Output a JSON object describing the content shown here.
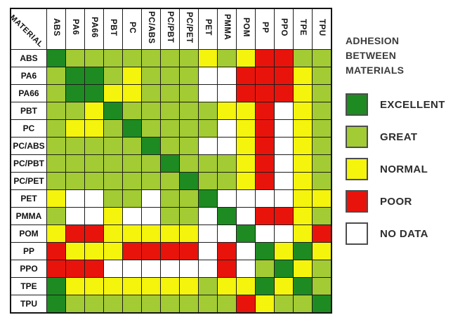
{
  "title": "ADHESION BETWEEN MATERIALS",
  "corner_label": "MATERIAL",
  "materials": [
    "ABS",
    "PA6",
    "PA66",
    "PBT",
    "PC",
    "PC/ABS",
    "PC/PBT",
    "PC/PET",
    "PET",
    "PMMA",
    "POM",
    "PP",
    "PPO",
    "TPE",
    "TPU"
  ],
  "legend": [
    {
      "code": "E",
      "label": "EXCELLENT",
      "color": "#1e8b22"
    },
    {
      "code": "G",
      "label": "GREAT",
      "color": "#a3cb33"
    },
    {
      "code": "N",
      "label": "NORMAL",
      "color": "#f4f40c"
    },
    {
      "code": "P",
      "label": "POOR",
      "color": "#e8140c"
    },
    {
      "code": "X",
      "label": "NO DATA",
      "color": "#ffffff"
    }
  ],
  "chart_data": {
    "type": "heatmap",
    "title": "ADHESION BETWEEN MATERIALS",
    "rows": [
      "ABS",
      "PA6",
      "PA66",
      "PBT",
      "PC",
      "PC/ABS",
      "PC/PBT",
      "PC/PET",
      "PET",
      "PMMA",
      "POM",
      "PP",
      "PPO",
      "TPE",
      "TPU"
    ],
    "columns": [
      "ABS",
      "PA6",
      "PA66",
      "PBT",
      "PC",
      "PC/ABS",
      "PC/PBT",
      "PC/PET",
      "PET",
      "PMMA",
      "POM",
      "PP",
      "PPO",
      "TPE",
      "TPU"
    ],
    "value_legend": {
      "E": "EXCELLENT",
      "G": "GREAT",
      "N": "NORMAL",
      "P": "POOR",
      "X": "NO DATA"
    },
    "grid": [
      "EGGGGGGGNGNPPGG",
      "GEEGNGGGXXPPPNG",
      "GEENNGGGXXPPPNG",
      "GGNEGGGGGNNPXNG",
      "GNNGEGGGGXNPXNG",
      "GGGGGEGGXXNPXNG",
      "GGGGGGEGGGNPXNG",
      "GGGGGGGEGGNPXNG",
      "NXXGGXGGEXXXXNN",
      "GXXNXXGGXEXPPNG",
      "NPPNNNNNXXEXXNP",
      "PNNNPPPPXPXENEN",
      "PPPXXXXXXPXGENG",
      "ENNNNNNNGNNENEG",
      "EGGGGGGGGGPNGGE"
    ]
  }
}
